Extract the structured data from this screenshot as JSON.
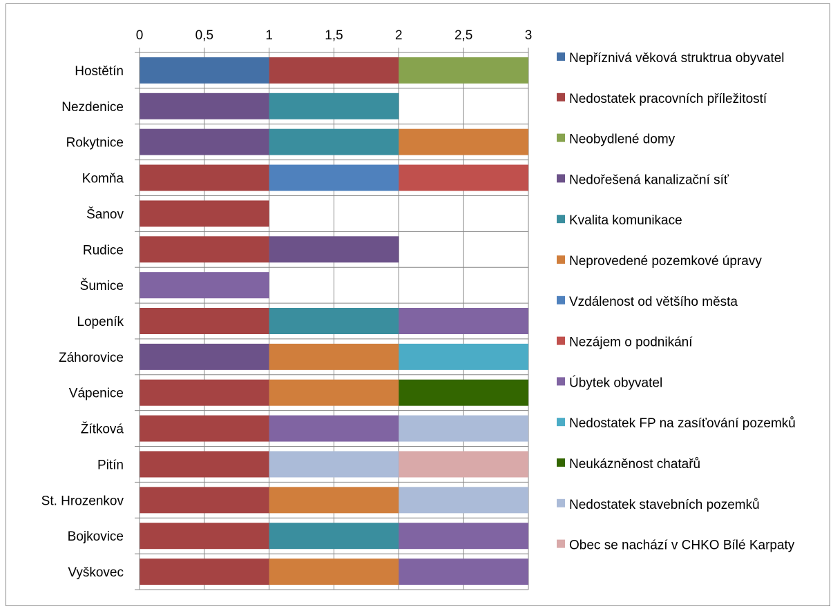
{
  "chart_data": {
    "type": "bar",
    "orientation": "horizontal",
    "stacked": true,
    "xlim": [
      0,
      3
    ],
    "x_ticks": [
      "0",
      "0,5",
      "1",
      "1,5",
      "2",
      "2,5",
      "3"
    ],
    "x_tick_values": [
      0,
      0.5,
      1,
      1.5,
      2,
      2.5,
      3
    ],
    "x_axis_position": "top",
    "grid": true,
    "legend_position": "right",
    "categories": [
      "Hostětín",
      "Nezdenice",
      "Rokytnice",
      "Komňa",
      "Šanov",
      "Rudice",
      "Šumice",
      "Lopeník",
      "Záhorovice",
      "Vápenice",
      "Žítková",
      "Pitín",
      "St. Hrozenkov",
      "Bojkovice",
      "Vyškovec"
    ],
    "series": [
      {
        "name": "Nepříznivá věková struktrua obyvatel",
        "color": "#4470A6",
        "values": [
          1,
          0,
          0,
          0,
          0,
          0,
          0,
          0,
          0,
          0,
          0,
          0,
          0,
          0,
          0
        ]
      },
      {
        "name": "Nedostatek pracovních příležitostí",
        "color": "#A54343",
        "values": [
          1,
          0,
          0,
          1,
          1,
          1,
          0,
          1,
          0,
          1,
          1,
          1,
          1,
          1,
          1
        ]
      },
      {
        "name": "Neobydlené domy",
        "color": "#87A34E",
        "values": [
          1,
          0,
          0,
          0,
          0,
          0,
          0,
          0,
          0,
          0,
          0,
          0,
          0,
          0,
          0
        ]
      },
      {
        "name": "Nedořešená kanalizační síť",
        "color": "#6C5289",
        "values": [
          0,
          1,
          1,
          0,
          0,
          1,
          0,
          0,
          1,
          0,
          0,
          0,
          0,
          0,
          0
        ]
      },
      {
        "name": "Kvalita komunikace",
        "color": "#3A8E9E",
        "values": [
          0,
          1,
          1,
          0,
          0,
          0,
          0,
          1,
          0,
          0,
          0,
          0,
          0,
          1,
          0
        ]
      },
      {
        "name": "Neprovedené pozemkové úpravy",
        "color": "#D07E3C",
        "values": [
          0,
          0,
          1,
          0,
          0,
          0,
          0,
          0,
          1,
          1,
          0,
          0,
          1,
          0,
          1
        ]
      },
      {
        "name": "Vzdálenost od většího města",
        "color": "#4F81BD",
        "values": [
          0,
          0,
          0,
          1,
          0,
          0,
          0,
          0,
          0,
          0,
          0,
          0,
          0,
          0,
          0
        ]
      },
      {
        "name": "Nezájem o podnikání",
        "color": "#C0504D",
        "values": [
          0,
          0,
          0,
          1,
          0,
          0,
          0,
          0,
          0,
          0,
          0,
          0,
          0,
          0,
          0
        ]
      },
      {
        "name": "Úbytek obyvatel",
        "color": "#8064A2",
        "values": [
          0,
          0,
          0,
          0,
          0,
          0,
          1,
          1,
          0,
          0,
          1,
          0,
          0,
          1,
          1
        ]
      },
      {
        "name": "Nedostatek FP na zasíťování pozemků",
        "color": "#4BACC6",
        "values": [
          0,
          0,
          0,
          0,
          0,
          0,
          0,
          0,
          1,
          0,
          0,
          0,
          0,
          0,
          0
        ]
      },
      {
        "name": "Neukázněnost chatařů",
        "color": "#336600",
        "values": [
          0,
          0,
          0,
          0,
          0,
          0,
          0,
          0,
          0,
          1,
          0,
          0,
          0,
          0,
          0
        ]
      },
      {
        "name": "Nedostatek stavebních pozemků",
        "color": "#ABBBD8",
        "values": [
          0,
          0,
          0,
          0,
          0,
          0,
          0,
          0,
          0,
          0,
          1,
          1,
          1,
          0,
          0
        ]
      },
      {
        "name": "Obec se nachází v CHKO Bílé Karpaty",
        "color": "#D9A9A9",
        "values": [
          0,
          0,
          0,
          0,
          0,
          0,
          0,
          0,
          0,
          0,
          0,
          1,
          0,
          0,
          0
        ]
      }
    ],
    "segment_order": [
      [
        0,
        1,
        2
      ],
      [
        3,
        4
      ],
      [
        3,
        4,
        5
      ],
      [
        1,
        6,
        7
      ],
      [
        1
      ],
      [
        1,
        3
      ],
      [
        8
      ],
      [
        1,
        4,
        8
      ],
      [
        3,
        5,
        9
      ],
      [
        1,
        5,
        10
      ],
      [
        1,
        8,
        11
      ],
      [
        1,
        11,
        12
      ],
      [
        1,
        5,
        11
      ],
      [
        1,
        4,
        8
      ],
      [
        1,
        5,
        8
      ]
    ],
    "colors": {
      "gridline": "#868686",
      "axis": "#868686",
      "frame": "#868686",
      "background": "#ffffff"
    }
  }
}
